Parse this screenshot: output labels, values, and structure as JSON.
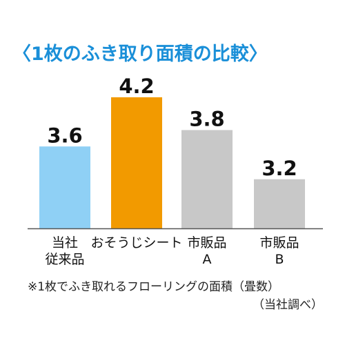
{
  "title": "〈1枚のふき取り面積の比較〉",
  "chart_data": {
    "type": "bar",
    "categories": [
      [
        "当社",
        "従来品"
      ],
      [
        "おそうじシート"
      ],
      [
        "市販品",
        "A"
      ],
      [
        "市販品",
        "B"
      ]
    ],
    "values": [
      3.6,
      4.2,
      3.8,
      3.2
    ],
    "value_labels": [
      "3.6",
      "4.2",
      "3.8",
      "3.2"
    ],
    "colors": [
      "#8fd0f5",
      "#f29a00",
      "#c8c8c8",
      "#c8c8c8"
    ],
    "ylim": [
      2.6,
      4.2
    ],
    "grid": false
  },
  "note": "※1枚でふき取れるフローリングの面積（畳数）",
  "source": "（当社調べ）"
}
